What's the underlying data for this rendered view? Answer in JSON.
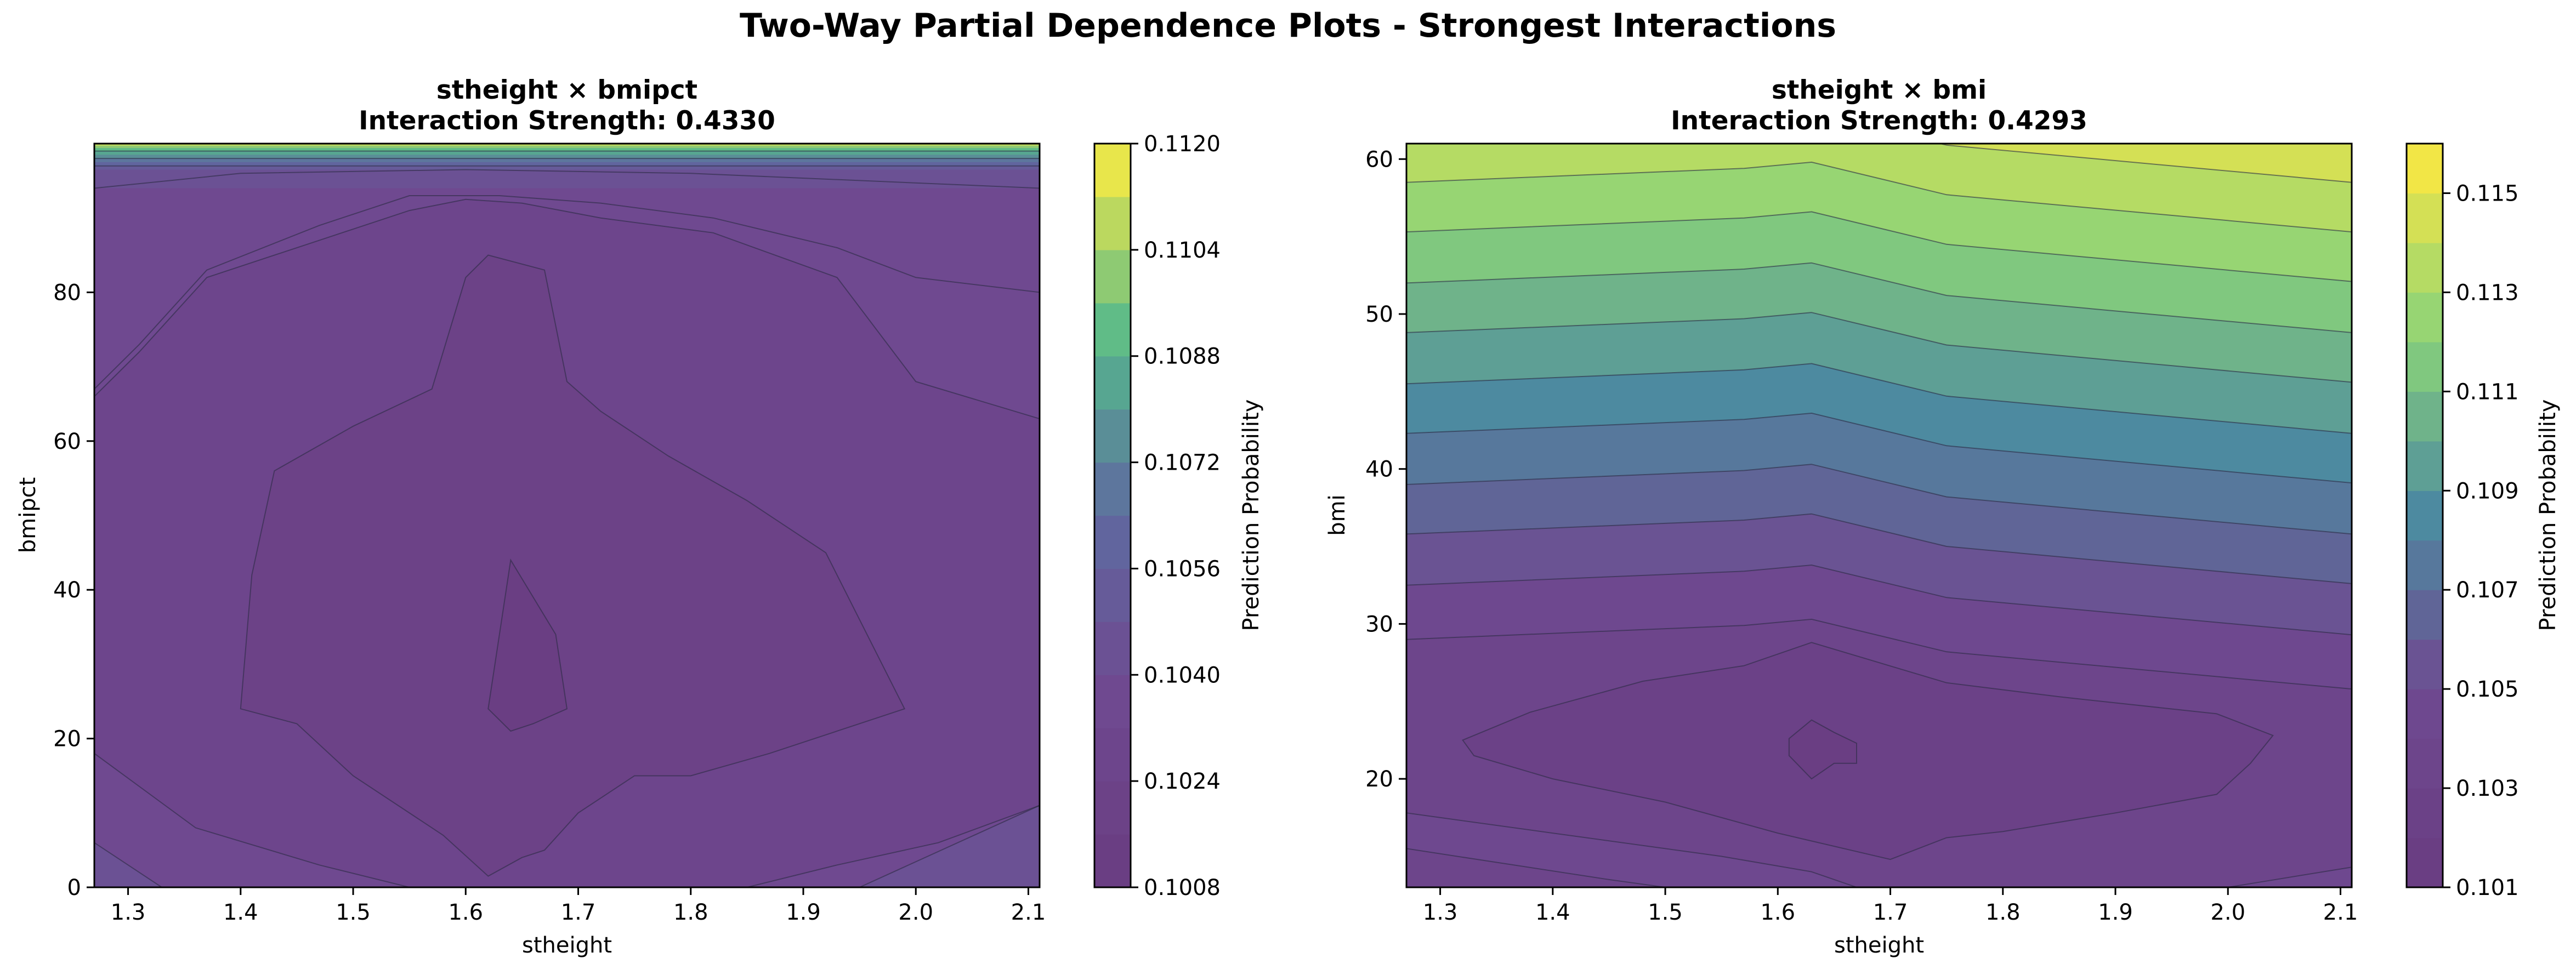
{
  "figure": {
    "title": "Two-Way Partial Dependence Plots - Strongest Interactions"
  },
  "chart_data": [
    {
      "type": "contour",
      "title_line1": "stheight × bmipct",
      "title_line2": "Interaction Strength: 0.4330",
      "xlabel": "stheight",
      "ylabel": "bmipct",
      "xlim": [
        1.27,
        2.11
      ],
      "ylim": [
        0,
        100
      ],
      "xticks": [
        "1.3",
        "1.4",
        "1.5",
        "1.6",
        "1.7",
        "1.8",
        "1.9",
        "2.0",
        "2.1"
      ],
      "yticks": [
        "0",
        "20",
        "40",
        "60",
        "80"
      ],
      "colorbar": {
        "label": "Prediction Probability",
        "range": [
          0.1008,
          0.112
        ],
        "n_levels": 14,
        "ticks": [
          "0.1008",
          "0.1024",
          "0.1040",
          "0.1056",
          "0.1072",
          "0.1088",
          "0.1104",
          "0.1120"
        ]
      },
      "colors": {
        "min": "#6a3e83",
        "low": "#6f4a91",
        "mid": "#5f6aa0",
        "high": "#55b88c",
        "max": "#e8e64b"
      },
      "regions": [
        {
          "level": 2,
          "points": [
            [
              1.27,
              18
            ],
            [
              1.27,
              66
            ],
            [
              1.31,
              72
            ],
            [
              1.37,
              82
            ],
            [
              1.47,
              87
            ],
            [
              1.55,
              91
            ],
            [
              1.6,
              92.5
            ],
            [
              1.65,
              92
            ],
            [
              1.72,
              90
            ],
            [
              1.82,
              88
            ],
            [
              1.93,
              82
            ],
            [
              2.0,
              68
            ],
            [
              2.11,
              63
            ],
            [
              2.11,
              11
            ],
            [
              2.02,
              6
            ],
            [
              1.93,
              3
            ],
            [
              1.85,
              0
            ],
            [
              1.55,
              0
            ],
            [
              1.47,
              3
            ],
            [
              1.36,
              8
            ]
          ]
        },
        {
          "level": 1,
          "points": [
            [
              1.4,
              24
            ],
            [
              1.41,
              42
            ],
            [
              1.43,
              56
            ],
            [
              1.5,
              62
            ],
            [
              1.57,
              67
            ],
            [
              1.6,
              82
            ],
            [
              1.62,
              85
            ],
            [
              1.67,
              83
            ],
            [
              1.69,
              68
            ],
            [
              1.72,
              64
            ],
            [
              1.78,
              58
            ],
            [
              1.85,
              52
            ],
            [
              1.92,
              45
            ],
            [
              1.99,
              24
            ],
            [
              1.87,
              18
            ],
            [
              1.8,
              15
            ],
            [
              1.75,
              15
            ],
            [
              1.7,
              10
            ],
            [
              1.67,
              5
            ],
            [
              1.65,
              4
            ],
            [
              1.62,
              1.5
            ],
            [
              1.58,
              7
            ],
            [
              1.5,
              15
            ],
            [
              1.45,
              22
            ]
          ]
        },
        {
          "level": 0,
          "points": [
            [
              1.62,
              24
            ],
            [
              1.64,
              44
            ],
            [
              1.68,
              34
            ],
            [
              1.69,
              24
            ],
            [
              1.66,
              22
            ],
            [
              1.64,
              21
            ]
          ]
        }
      ],
      "contours": [
        {
          "level": 3,
          "points": [
            [
              1.27,
              67
            ],
            [
              1.31,
              73
            ],
            [
              1.37,
              83
            ],
            [
              1.47,
              89
            ],
            [
              1.55,
              93
            ],
            [
              1.63,
              93
            ],
            [
              1.72,
              92
            ],
            [
              1.82,
              90
            ],
            [
              1.93,
              86
            ],
            [
              2.0,
              82
            ],
            [
              2.11,
              80
            ]
          ]
        },
        {
          "level": 4,
          "points": [
            [
              1.27,
              94
            ],
            [
              1.4,
              96
            ],
            [
              1.6,
              96.5
            ],
            [
              1.8,
              96
            ],
            [
              2.11,
              94
            ]
          ]
        },
        {
          "level": 5,
          "points": [
            [
              1.27,
              97
            ],
            [
              2.11,
              97
            ]
          ]
        },
        {
          "level": 7,
          "points": [
            [
              1.27,
              98
            ],
            [
              2.11,
              98
            ]
          ]
        },
        {
          "level": 10,
          "points": [
            [
              1.27,
              99
            ],
            [
              2.11,
              99
            ]
          ]
        },
        {
          "level": 3,
          "points": [
            [
              1.27,
              6
            ],
            [
              1.33,
              0
            ]
          ]
        },
        {
          "level": 3,
          "points": [
            [
              1.95,
              0
            ],
            [
              2.11,
              11
            ]
          ]
        }
      ]
    },
    {
      "type": "contour",
      "title_line1": "stheight × bmi",
      "title_line2": "Interaction Strength: 0.4293",
      "xlabel": "stheight",
      "ylabel": "bmi",
      "xlim": [
        1.27,
        2.11
      ],
      "ylim": [
        13,
        61
      ],
      "xticks": [
        "1.3",
        "1.4",
        "1.5",
        "1.6",
        "1.7",
        "1.8",
        "1.9",
        "2.0",
        "2.1"
      ],
      "yticks": [
        "20",
        "30",
        "40",
        "50",
        "60"
      ],
      "colorbar": {
        "label": "Prediction Probability",
        "range": [
          0.101,
          0.116
        ],
        "n_levels": 15,
        "ticks": [
          "0.101",
          "0.103",
          "0.105",
          "0.107",
          "0.109",
          "0.111",
          "0.113",
          "0.115"
        ]
      },
      "colors": {
        "min": "#6a3e83",
        "low": "#6f4a91",
        "mid": "#4d8aa0",
        "high": "#88d27a",
        "max": "#f2e646"
      },
      "band_offsets_x": [
        1.27,
        1.57,
        1.63,
        1.75,
        2.11
      ],
      "band_offsets_dy": [
        0,
        0.9,
        1.3,
        -0.8,
        -3.2
      ],
      "bands": [
        {
          "level": 3,
          "y": 29.0
        },
        {
          "level": 4,
          "y": 32.5
        },
        {
          "level": 5,
          "y": 35.8
        },
        {
          "level": 6,
          "y": 39.0
        },
        {
          "level": 7,
          "y": 42.3
        },
        {
          "level": 8,
          "y": 45.5
        },
        {
          "level": 9,
          "y": 48.8
        },
        {
          "level": 10,
          "y": 52.0
        },
        {
          "level": 11,
          "y": 55.3
        },
        {
          "level": 12,
          "y": 58.5
        },
        {
          "level": 13,
          "y": 61.7
        }
      ],
      "low_bands": [
        {
          "level": 2,
          "points": [
            [
              1.27,
              17.8
            ],
            [
              1.4,
              16.5
            ],
            [
              1.55,
              15
            ],
            [
              1.63,
              14
            ],
            [
              1.67,
              13
            ]
          ]
        },
        {
          "level": 1,
          "points": [
            [
              1.27,
              15.5
            ],
            [
              1.45,
              13.5
            ],
            [
              1.5,
              13
            ]
          ]
        },
        {
          "level": 2,
          "points": [
            [
              2.0,
              13
            ],
            [
              2.11,
              14.3
            ]
          ]
        }
      ],
      "regions": [
        {
          "level": 1,
          "points": [
            [
              1.32,
              22.5
            ],
            [
              1.38,
              24.3
            ],
            [
              1.48,
              26.3
            ],
            [
              1.57,
              27.3
            ],
            [
              1.63,
              28.8
            ],
            [
              1.75,
              26.2
            ],
            [
              1.85,
              25.3
            ],
            [
              1.99,
              24.2
            ],
            [
              2.04,
              22.8
            ],
            [
              2.02,
              21
            ],
            [
              1.99,
              19
            ],
            [
              1.9,
              17.8
            ],
            [
              1.8,
              16.6
            ],
            [
              1.75,
              16.2
            ],
            [
              1.7,
              14.8
            ],
            [
              1.6,
              16.5
            ],
            [
              1.5,
              18.5
            ],
            [
              1.4,
              20
            ],
            [
              1.33,
              21.5
            ]
          ]
        },
        {
          "level": 0,
          "points": [
            [
              1.61,
              22.6
            ],
            [
              1.63,
              23.8
            ],
            [
              1.65,
              23
            ],
            [
              1.67,
              22.3
            ],
            [
              1.67,
              21
            ],
            [
              1.65,
              21
            ],
            [
              1.63,
              20
            ],
            [
              1.61,
              21.5
            ]
          ]
        }
      ]
    }
  ]
}
